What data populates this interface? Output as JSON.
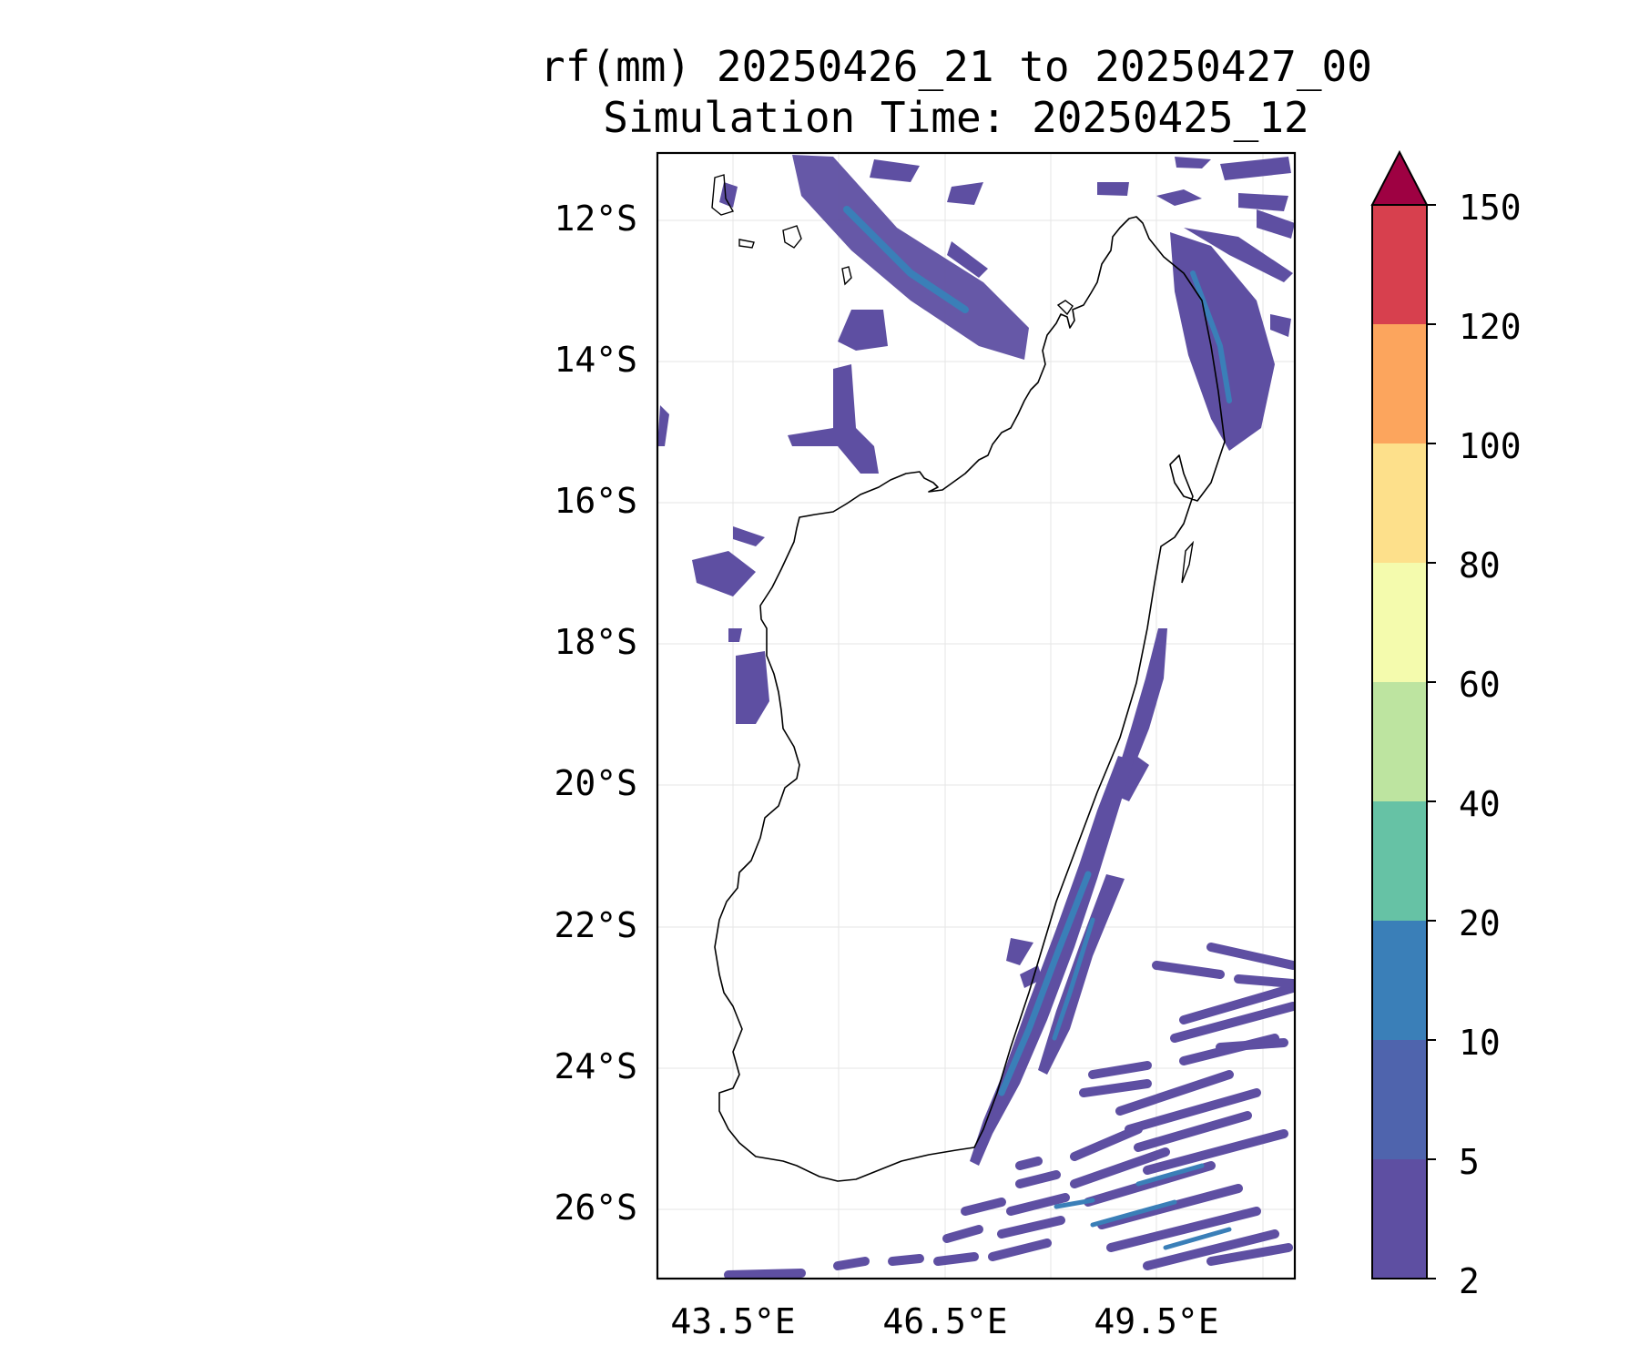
{
  "title": {
    "line1": "rf(mm) 20250426_21 to 20250427_00",
    "line2": "Simulation Time: 20250425_12"
  },
  "axes": {
    "lat_labels": [
      "12°S",
      "14°S",
      "16°S",
      "18°S",
      "20°S",
      "22°S",
      "24°S",
      "26°S"
    ],
    "lon_labels": [
      "43.5°E",
      "46.5°E",
      "49.5°E"
    ]
  },
  "colorbar": {
    "levels": [
      "2",
      "5",
      "10",
      "20",
      "40",
      "60",
      "80",
      "100",
      "120",
      "150"
    ],
    "colors": [
      "#5e4fa2",
      "#4f64ad",
      "#3a7fb8",
      "#66c2a5",
      "#bde4a0",
      "#f4fbad",
      "#fde08b",
      "#fca55d",
      "#d7404e"
    ],
    "extend_color": "#9e0142"
  },
  "map": {
    "land_color": "#ffffff",
    "coast_color": "#000000",
    "grid": true
  }
}
